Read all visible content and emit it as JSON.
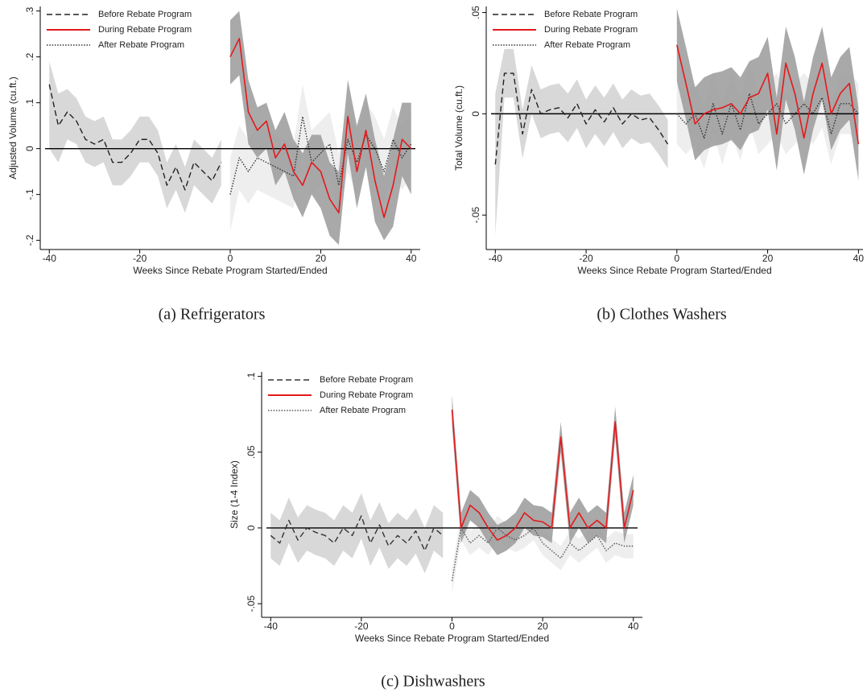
{
  "chart_data": [
    {
      "type": "line",
      "caption": "(a) Refrigerators",
      "ylabel": "Adjusted Volume (cu.ft.)",
      "xlabel": "Weeks Since Rebate Program Started/Ended",
      "xlim": [
        -42,
        42
      ],
      "ylim": [
        -0.22,
        0.31
      ],
      "xticks": [
        -40,
        -20,
        0,
        20,
        40
      ],
      "yticks": [
        {
          "value": -0.2,
          "label": "-.2"
        },
        {
          "value": -0.1,
          "label": "-.1"
        },
        0,
        {
          "value": 0.1,
          "label": ".1"
        },
        {
          "value": 0.2,
          "label": ".2"
        },
        {
          "value": 0.3,
          "label": ".3"
        }
      ],
      "hline": 0,
      "series": [
        {
          "name": "Before Rebate Program",
          "color": "#222222",
          "linestyle": "dashed",
          "band_color": "#d4d4d4",
          "x": [
            -40,
            -38,
            -36,
            -34,
            -32,
            -30,
            -28,
            -26,
            -24,
            -22,
            -20,
            -18,
            -16,
            -14,
            -12,
            -10,
            -8,
            -6,
            -4,
            -2
          ],
          "values": [
            0.14,
            0.05,
            0.08,
            0.06,
            0.02,
            0.01,
            0.02,
            -0.03,
            -0.03,
            -0.01,
            0.02,
            0.02,
            -0.01,
            -0.08,
            -0.04,
            -0.09,
            -0.03,
            -0.05,
            -0.07,
            -0.03
          ],
          "upper": [
            0.19,
            0.12,
            0.13,
            0.11,
            0.07,
            0.06,
            0.07,
            0.02,
            0.02,
            0.04,
            0.07,
            0.07,
            0.04,
            -0.03,
            0.01,
            -0.04,
            0.02,
            0.0,
            -0.02,
            0.02
          ],
          "lower": [
            0.0,
            -0.03,
            0.02,
            0.01,
            -0.03,
            -0.04,
            -0.03,
            -0.08,
            -0.08,
            -0.06,
            -0.03,
            -0.03,
            -0.06,
            -0.13,
            -0.09,
            -0.14,
            -0.08,
            -0.1,
            -0.12,
            -0.08
          ]
        },
        {
          "name": "After Rebate Program",
          "color": "#333333",
          "linestyle": "dotted",
          "band_color": "#ececec",
          "x": [
            0,
            2,
            4,
            6,
            8,
            10,
            12,
            14,
            16,
            18,
            20,
            22,
            24,
            26,
            28,
            30,
            32,
            34,
            36,
            38,
            40
          ],
          "values": [
            -0.1,
            -0.02,
            -0.05,
            -0.02,
            -0.03,
            -0.04,
            -0.05,
            -0.06,
            0.07,
            -0.03,
            -0.01,
            0.01,
            -0.08,
            0.02,
            -0.03,
            0.03,
            0.0,
            -0.05,
            0.02,
            -0.02,
            0.01
          ],
          "upper": [
            -0.02,
            0.05,
            0.02,
            0.05,
            0.04,
            0.03,
            0.02,
            0.01,
            0.14,
            0.04,
            0.06,
            0.08,
            -0.01,
            0.09,
            0.04,
            0.1,
            0.07,
            0.02,
            0.09,
            0.05,
            0.08
          ],
          "lower": [
            -0.18,
            -0.09,
            -0.12,
            -0.09,
            -0.1,
            -0.11,
            -0.12,
            -0.13,
            0.0,
            -0.1,
            -0.08,
            -0.06,
            -0.15,
            -0.05,
            -0.1,
            -0.04,
            -0.07,
            -0.12,
            -0.05,
            -0.09,
            -0.06
          ]
        },
        {
          "name": "During Rebate Program",
          "color": "#e3191c",
          "linestyle": "solid",
          "band_color": "#9a9a9a",
          "x": [
            0,
            2,
            4,
            6,
            8,
            10,
            12,
            14,
            16,
            18,
            20,
            22,
            24,
            26,
            28,
            30,
            32,
            34,
            36,
            38,
            40
          ],
          "values": [
            0.2,
            0.24,
            0.08,
            0.04,
            0.06,
            -0.02,
            0.01,
            -0.05,
            -0.08,
            -0.03,
            -0.05,
            -0.11,
            -0.14,
            0.07,
            -0.05,
            0.04,
            -0.07,
            -0.15,
            -0.08,
            0.02,
            0.0
          ],
          "upper": [
            0.28,
            0.3,
            0.15,
            0.09,
            0.1,
            0.04,
            0.08,
            0.02,
            -0.01,
            0.03,
            0.03,
            -0.03,
            -0.05,
            0.15,
            0.05,
            0.12,
            0.02,
            -0.06,
            0.02,
            0.1,
            0.1
          ],
          "lower": [
            0.14,
            0.16,
            0.01,
            -0.02,
            0.0,
            -0.08,
            -0.05,
            -0.11,
            -0.15,
            -0.1,
            -0.13,
            -0.19,
            -0.21,
            -0.01,
            -0.13,
            -0.04,
            -0.16,
            -0.2,
            -0.17,
            -0.06,
            -0.1
          ]
        }
      ]
    },
    {
      "type": "line",
      "caption": "(b) Clothes Washers",
      "ylabel": "Total Volume (cu.ft.)",
      "xlabel": "Weeks Since Rebate Program Started/Ended",
      "xlim": [
        -42,
        41
      ],
      "ylim": [
        -0.067,
        0.053
      ],
      "xticks": [
        -40,
        -20,
        0,
        20,
        40
      ],
      "yticks": [
        {
          "value": -0.05,
          "label": "-.05"
        },
        0,
        {
          "value": 0.05,
          "label": ".05"
        }
      ],
      "hline": 0,
      "series": [
        {
          "name": "Before Rebate Program",
          "color": "#222222",
          "linestyle": "dashed",
          "band_color": "#d4d4d4",
          "x": [
            -40,
            -38,
            -36,
            -34,
            -32,
            -30,
            -28,
            -26,
            -24,
            -22,
            -20,
            -18,
            -16,
            -14,
            -12,
            -10,
            -8,
            -6,
            -4,
            -2
          ],
          "values": [
            -0.025,
            0.02,
            0.02,
            -0.01,
            0.012,
            0.0,
            0.002,
            0.003,
            -0.002,
            0.005,
            -0.005,
            0.002,
            -0.004,
            0.003,
            -0.005,
            0.0,
            -0.003,
            -0.002,
            -0.008,
            -0.015
          ],
          "upper": [
            0.01,
            0.032,
            0.032,
            0.002,
            0.024,
            0.012,
            0.014,
            0.015,
            0.01,
            0.017,
            0.007,
            0.014,
            0.008,
            0.015,
            0.007,
            0.012,
            0.009,
            0.01,
            0.004,
            -0.003
          ],
          "lower": [
            -0.06,
            0.008,
            0.008,
            -0.022,
            0.0,
            -0.012,
            -0.01,
            -0.009,
            -0.014,
            -0.007,
            -0.017,
            -0.01,
            -0.016,
            -0.009,
            -0.017,
            -0.012,
            -0.015,
            -0.014,
            -0.02,
            -0.027
          ]
        },
        {
          "name": "After Rebate Program",
          "color": "#333333",
          "linestyle": "dotted",
          "band_color": "#ececec",
          "x": [
            0,
            2,
            4,
            6,
            8,
            10,
            12,
            14,
            16,
            18,
            20,
            22,
            24,
            26,
            28,
            30,
            32,
            34,
            36,
            38,
            40
          ],
          "values": [
            0.0,
            -0.005,
            0.0,
            -0.012,
            0.005,
            -0.01,
            0.005,
            -0.008,
            0.01,
            -0.005,
            0.0,
            0.005,
            -0.005,
            0.0,
            0.005,
            0.0,
            0.008,
            -0.01,
            0.005,
            0.005,
            0.0
          ],
          "upper": [
            0.015,
            0.01,
            0.015,
            0.003,
            0.02,
            0.005,
            0.02,
            0.007,
            0.025,
            0.01,
            0.015,
            0.02,
            0.01,
            0.015,
            0.02,
            0.015,
            0.023,
            0.005,
            0.02,
            0.02,
            0.015
          ],
          "lower": [
            -0.015,
            -0.02,
            -0.015,
            -0.027,
            -0.01,
            -0.025,
            -0.01,
            -0.023,
            -0.005,
            -0.02,
            -0.015,
            -0.01,
            -0.02,
            -0.015,
            -0.01,
            -0.015,
            -0.007,
            -0.025,
            -0.01,
            -0.01,
            -0.015
          ]
        },
        {
          "name": "During Rebate Program",
          "color": "#e3191c",
          "linestyle": "solid",
          "band_color": "#9a9a9a",
          "x": [
            0,
            2,
            4,
            6,
            8,
            10,
            12,
            14,
            16,
            18,
            20,
            22,
            24,
            26,
            28,
            30,
            32,
            34,
            36,
            38,
            40
          ],
          "values": [
            0.034,
            0.015,
            -0.005,
            0.0,
            0.002,
            0.003,
            0.005,
            0.0,
            0.008,
            0.01,
            0.02,
            -0.01,
            0.025,
            0.01,
            -0.012,
            0.01,
            0.025,
            0.0,
            0.01,
            0.015,
            -0.015
          ],
          "upper": [
            0.052,
            0.033,
            0.013,
            0.018,
            0.02,
            0.021,
            0.023,
            0.018,
            0.026,
            0.028,
            0.038,
            0.008,
            0.043,
            0.028,
            0.006,
            0.028,
            0.043,
            0.018,
            0.028,
            0.033,
            0.003
          ],
          "lower": [
            0.016,
            -0.003,
            -0.023,
            -0.018,
            -0.016,
            -0.015,
            -0.013,
            -0.018,
            -0.01,
            -0.008,
            0.002,
            -0.028,
            0.007,
            -0.008,
            -0.03,
            -0.008,
            0.007,
            -0.018,
            -0.008,
            -0.003,
            -0.033
          ]
        }
      ]
    },
    {
      "type": "line",
      "caption": "(c) Dishwashers",
      "ylabel": "Size (1-4 Index)",
      "xlabel": "Weeks Since Rebate Program Started/Ended",
      "xlim": [
        -42,
        42
      ],
      "ylim": [
        -0.059,
        0.103
      ],
      "xticks": [
        -40,
        -20,
        0,
        20,
        40
      ],
      "yticks": [
        {
          "value": -0.05,
          "label": "-.05"
        },
        0,
        {
          "value": 0.05,
          "label": ".05"
        },
        {
          "value": 0.1,
          "label": ".1"
        }
      ],
      "hline": 0,
      "series": [
        {
          "name": "Before Rebate Program",
          "color": "#333333",
          "linestyle": "dashed",
          "band_color": "#d4d4d4",
          "x": [
            -40,
            -38,
            -36,
            -34,
            -32,
            -30,
            -28,
            -26,
            -24,
            -22,
            -20,
            -18,
            -16,
            -14,
            -12,
            -10,
            -8,
            -6,
            -4,
            -2
          ],
          "values": [
            -0.005,
            -0.01,
            0.005,
            -0.008,
            0.0,
            -0.003,
            -0.005,
            -0.01,
            0.0,
            -0.005,
            0.008,
            -0.01,
            0.002,
            -0.012,
            -0.005,
            -0.01,
            -0.002,
            -0.015,
            0.0,
            -0.005
          ],
          "upper": [
            0.01,
            0.005,
            0.02,
            0.007,
            0.015,
            0.012,
            0.01,
            0.005,
            0.015,
            0.01,
            0.023,
            0.005,
            0.017,
            0.003,
            0.01,
            0.005,
            0.013,
            0.0,
            0.015,
            0.01
          ],
          "lower": [
            -0.02,
            -0.025,
            -0.01,
            -0.023,
            -0.015,
            -0.018,
            -0.02,
            -0.025,
            -0.015,
            -0.02,
            -0.007,
            -0.025,
            -0.013,
            -0.027,
            -0.02,
            -0.025,
            -0.017,
            -0.03,
            -0.015,
            -0.02
          ]
        },
        {
          "name": "After Rebate Program",
          "color": "#555555",
          "linestyle": "dotted",
          "band_color": "#ececec",
          "x": [
            0,
            2,
            4,
            6,
            8,
            10,
            12,
            14,
            16,
            18,
            20,
            22,
            24,
            26,
            28,
            30,
            32,
            34,
            36,
            38,
            40
          ],
          "values": [
            -0.035,
            0.0,
            -0.01,
            -0.005,
            -0.01,
            0.0,
            -0.005,
            -0.008,
            -0.005,
            0.0,
            -0.01,
            -0.015,
            -0.02,
            -0.01,
            -0.015,
            -0.01,
            -0.005,
            -0.015,
            -0.01,
            -0.012,
            -0.012
          ],
          "upper": [
            -0.027,
            0.008,
            -0.002,
            0.003,
            -0.002,
            0.008,
            0.003,
            0.0,
            0.003,
            0.008,
            -0.002,
            -0.007,
            -0.012,
            -0.002,
            -0.007,
            -0.002,
            0.003,
            -0.007,
            -0.002,
            -0.004,
            -0.004
          ],
          "lower": [
            -0.043,
            -0.008,
            -0.018,
            -0.013,
            -0.018,
            -0.008,
            -0.013,
            -0.016,
            -0.013,
            -0.008,
            -0.018,
            -0.023,
            -0.028,
            -0.018,
            -0.023,
            -0.018,
            -0.013,
            -0.023,
            -0.018,
            -0.02,
            -0.02
          ]
        },
        {
          "name": "During Rebate Program",
          "color": "#e3191c",
          "linestyle": "solid",
          "band_color": "#9a9a9a",
          "x": [
            0,
            2,
            4,
            6,
            8,
            10,
            12,
            14,
            16,
            18,
            20,
            22,
            24,
            26,
            28,
            30,
            32,
            34,
            36,
            38,
            40
          ],
          "values": [
            0.078,
            0.0,
            0.015,
            0.01,
            0.0,
            -0.008,
            -0.005,
            0.0,
            0.01,
            0.005,
            0.004,
            0.0,
            0.06,
            0.0,
            0.01,
            0.0,
            0.005,
            0.0,
            0.07,
            0.0,
            0.025
          ],
          "upper": [
            0.088,
            0.01,
            0.025,
            0.02,
            0.01,
            0.002,
            0.005,
            0.01,
            0.02,
            0.015,
            0.014,
            0.01,
            0.07,
            0.01,
            0.02,
            0.01,
            0.015,
            0.01,
            0.08,
            0.01,
            0.035
          ],
          "lower": [
            0.068,
            -0.01,
            0.005,
            0.0,
            -0.01,
            -0.018,
            -0.015,
            -0.01,
            0.0,
            -0.005,
            -0.006,
            -0.01,
            0.05,
            -0.01,
            0.0,
            -0.01,
            -0.005,
            -0.01,
            0.06,
            -0.01,
            0.015
          ]
        }
      ]
    }
  ]
}
